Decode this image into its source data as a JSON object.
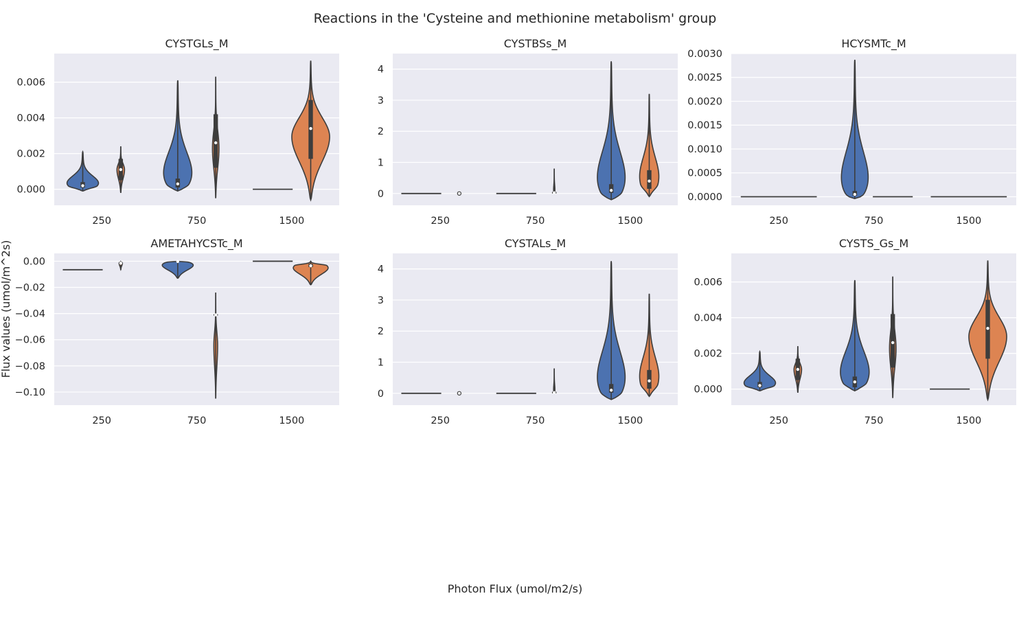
{
  "figure": {
    "title": "Reactions in the 'Cysteine and methionine metabolism' group",
    "xlabel": "Photon Flux (umol/m2/s)",
    "ylabel": "Flux values (umol/m^2s)"
  },
  "colors": {
    "panel_bg": "#eaeaf2",
    "grid": "#ffffff",
    "series_a": "#4c72b0",
    "series_b": "#dd8452",
    "line": "#3d3d3d",
    "median": "#ffffff"
  },
  "chart_data": [
    {
      "type": "violin",
      "title": "CYSTGLs_M",
      "categories": [
        "250",
        "750",
        "1500"
      ],
      "ylim": [
        -0.0009,
        0.0076
      ],
      "yticks": [
        0.0,
        0.002,
        0.004,
        0.006
      ],
      "ytick_labels": [
        "0.000",
        "0.002",
        "0.004",
        "0.006"
      ],
      "grid": true,
      "violins": [
        {
          "category": "250",
          "series": 0,
          "min": -0.0001,
          "max": 0.0021,
          "q1": 0.0001,
          "median": 0.0002,
          "q3": 0.0004,
          "halfwidth": 0.21,
          "peak": 0.13
        },
        {
          "category": "250",
          "series": 1,
          "min": -0.0002,
          "max": 0.0024,
          "q1": 0.0005,
          "median": 0.0011,
          "q3": 0.0017,
          "halfwidth": 0.04,
          "peak": 0.5
        },
        {
          "category": "750",
          "series": 0,
          "min": -0.0001,
          "max": 0.0061,
          "q1": 0.0001,
          "median": 0.0003,
          "q3": 0.0006,
          "halfwidth": 0.21,
          "peak": 0.06
        },
        {
          "category": "750",
          "series": 1,
          "min": -0.0005,
          "max": 0.0063,
          "q1": 0.0012,
          "median": 0.0026,
          "q3": 0.0042,
          "halfwidth": 0.035,
          "peak": 0.4
        },
        {
          "category": "1500",
          "series": 0,
          "min": 0.0,
          "max": 0.0,
          "median": 0.0,
          "flat": true,
          "halfwidth": 0.21
        },
        {
          "category": "1500",
          "series": 1,
          "min": -0.0006,
          "max": 0.0072,
          "q1": 0.0017,
          "median": 0.0034,
          "q3": 0.005,
          "halfwidth": 0.2,
          "peak": 0.45
        }
      ]
    },
    {
      "type": "violin",
      "title": "CYSTBSs_M",
      "categories": [
        "250",
        "750",
        "1500"
      ],
      "ylim": [
        -0.38,
        4.5
      ],
      "yticks": [
        0,
        1,
        2,
        3,
        4
      ],
      "ytick_labels": [
        "0",
        "1",
        "2",
        "3",
        "4"
      ],
      "grid": true,
      "violins": [
        {
          "category": "250",
          "series": 0,
          "min": 0.0,
          "max": 0.0,
          "median": 0.0,
          "flat": true,
          "halfwidth": 0.21
        },
        {
          "category": "250",
          "series": 1,
          "min": 0.0,
          "max": 0.0,
          "median": 0.0,
          "dot": true,
          "halfwidth": 0.01
        },
        {
          "category": "750",
          "series": 0,
          "min": 0.0,
          "max": 0.0,
          "median": 0.0,
          "flat": true,
          "halfwidth": 0.21
        },
        {
          "category": "750",
          "series": 1,
          "min": 0.0,
          "max": 0.8,
          "q1": 0.0,
          "median": 0.02,
          "q3": 0.05,
          "halfwidth": 0.01,
          "peak": 0.05
        },
        {
          "category": "1500",
          "series": 0,
          "min": -0.2,
          "max": 4.25,
          "q1": 0.02,
          "median": 0.1,
          "q3": 0.3,
          "halfwidth": 0.21,
          "peak": 0.05
        },
        {
          "category": "1500",
          "series": 1,
          "min": -0.1,
          "max": 3.2,
          "q1": 0.15,
          "median": 0.4,
          "q3": 0.75,
          "halfwidth": 0.13,
          "peak": 0.12
        }
      ]
    },
    {
      "type": "violin",
      "title": "HCYSMTc_M",
      "categories": [
        "250",
        "750",
        "1500"
      ],
      "ylim": [
        -0.00018,
        0.003
      ],
      "yticks": [
        0.0,
        0.0005,
        0.001,
        0.0015,
        0.002,
        0.0025,
        0.003
      ],
      "ytick_labels": [
        "0.0000",
        "0.0005",
        "0.0010",
        "0.0015",
        "0.0020",
        "0.0025",
        "0.0030"
      ],
      "grid": true,
      "violins": [
        {
          "category": "250",
          "series": 0,
          "min": 0.0,
          "max": 0.0,
          "median": 0.0,
          "flat": true,
          "halfwidth": 0.4
        },
        {
          "category": "750",
          "series": 0,
          "min": -4e-05,
          "max": 0.00287,
          "q1": 2e-05,
          "median": 5e-05,
          "q3": 0.00012,
          "halfwidth": 0.21,
          "peak": 0.03
        },
        {
          "category": "750",
          "series": 1,
          "min": 0.0,
          "max": 0.0,
          "median": 0.0,
          "flat": true,
          "halfwidth": 0.21
        },
        {
          "category": "1500",
          "series": 0,
          "min": 0.0,
          "max": 0.0,
          "median": 0.0,
          "flat": true,
          "halfwidth": 0.4
        }
      ]
    },
    {
      "type": "violin",
      "title": "AMETAHYCSTc_M",
      "categories": [
        "250",
        "750",
        "1500"
      ],
      "ylim": [
        -0.11,
        0.006
      ],
      "yticks": [
        0.0,
        -0.02,
        -0.04,
        -0.06,
        -0.08,
        -0.1
      ],
      "ytick_labels": [
        "0.00",
        "−0.02",
        "−0.04",
        "−0.06",
        "−0.08",
        "−0.10"
      ],
      "grid": true,
      "violins": [
        {
          "category": "250",
          "series": 0,
          "min": -0.0065,
          "max": -0.0065,
          "median": -0.0065,
          "flat": true,
          "halfwidth": 0.21
        },
        {
          "category": "250",
          "series": 1,
          "min": -0.0065,
          "max": -0.0003,
          "q1": -0.0018,
          "median": -0.0015,
          "q3": -0.0012,
          "halfwidth": 0.02,
          "peak": 0.9
        },
        {
          "category": "750",
          "series": 0,
          "min": -0.013,
          "max": 0.0,
          "q1": -0.0004,
          "median": -0.0002,
          "q3": 0.0,
          "halfwidth": 0.21,
          "peak": 0.95
        },
        {
          "category": "750",
          "series": 1,
          "min": -0.105,
          "max": -0.024,
          "q1": -0.0415,
          "median": -0.041,
          "q3": -0.0405,
          "halfwidth": 0.02,
          "peak": 0.5
        },
        {
          "category": "1500",
          "series": 0,
          "min": 0.0,
          "max": 0.0,
          "median": 0.0,
          "flat": true,
          "halfwidth": 0.21
        },
        {
          "category": "1500",
          "series": 1,
          "min": -0.018,
          "max": 0.0,
          "q1": -0.0045,
          "median": -0.0035,
          "q3": -0.002,
          "halfwidth": 0.21,
          "peak": 0.82
        }
      ]
    },
    {
      "type": "violin",
      "title": "CYSTALs_M",
      "categories": [
        "250",
        "750",
        "1500"
      ],
      "ylim": [
        -0.38,
        4.5
      ],
      "yticks": [
        0,
        1,
        2,
        3,
        4
      ],
      "ytick_labels": [
        "0",
        "1",
        "2",
        "3",
        "4"
      ],
      "grid": true,
      "violins": [
        {
          "category": "250",
          "series": 0,
          "min": 0.0,
          "max": 0.0,
          "median": 0.0,
          "flat": true,
          "halfwidth": 0.21
        },
        {
          "category": "250",
          "series": 1,
          "min": 0.0,
          "max": 0.0,
          "median": 0.0,
          "dot": true,
          "halfwidth": 0.01
        },
        {
          "category": "750",
          "series": 0,
          "min": 0.0,
          "max": 0.0,
          "median": 0.0,
          "flat": true,
          "halfwidth": 0.21
        },
        {
          "category": "750",
          "series": 1,
          "min": 0.0,
          "max": 0.8,
          "q1": 0.0,
          "median": 0.02,
          "q3": 0.05,
          "halfwidth": 0.01,
          "peak": 0.05
        },
        {
          "category": "1500",
          "series": 0,
          "min": -0.2,
          "max": 4.25,
          "q1": 0.02,
          "median": 0.1,
          "q3": 0.3,
          "halfwidth": 0.21,
          "peak": 0.05
        },
        {
          "category": "1500",
          "series": 1,
          "min": -0.1,
          "max": 3.2,
          "q1": 0.15,
          "median": 0.4,
          "q3": 0.75,
          "halfwidth": 0.13,
          "peak": 0.12
        }
      ]
    },
    {
      "type": "violin",
      "title": "CYSTS_Gs_M",
      "categories": [
        "250",
        "750",
        "1500"
      ],
      "ylim": [
        -0.0009,
        0.0076
      ],
      "yticks": [
        0.0,
        0.002,
        0.004,
        0.006
      ],
      "ytick_labels": [
        "0.000",
        "0.002",
        "0.004",
        "0.006"
      ],
      "grid": true,
      "violins": [
        {
          "category": "250",
          "series": 0,
          "min": -0.0001,
          "max": 0.0021,
          "q1": 0.0001,
          "median": 0.0002,
          "q3": 0.0004,
          "halfwidth": 0.21,
          "peak": 0.13
        },
        {
          "category": "250",
          "series": 1,
          "min": -0.0002,
          "max": 0.0024,
          "q1": 0.0005,
          "median": 0.0011,
          "q3": 0.0017,
          "halfwidth": 0.04,
          "peak": 0.5
        },
        {
          "category": "750",
          "series": 0,
          "min": -0.0001,
          "max": 0.0061,
          "q1": 0.0001,
          "median": 0.0004,
          "q3": 0.0007,
          "halfwidth": 0.21,
          "peak": 0.07
        },
        {
          "category": "750",
          "series": 1,
          "min": -0.0005,
          "max": 0.0063,
          "q1": 0.0012,
          "median": 0.0026,
          "q3": 0.0042,
          "halfwidth": 0.035,
          "peak": 0.4
        },
        {
          "category": "1500",
          "series": 0,
          "min": 0.0,
          "max": 0.0,
          "median": 0.0,
          "flat": true,
          "halfwidth": 0.21
        },
        {
          "category": "1500",
          "series": 1,
          "min": -0.0006,
          "max": 0.0072,
          "q1": 0.0017,
          "median": 0.0034,
          "q3": 0.005,
          "halfwidth": 0.2,
          "peak": 0.45
        }
      ]
    }
  ]
}
